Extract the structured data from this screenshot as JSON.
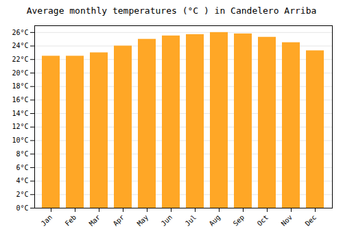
{
  "chart_data": {
    "type": "bar",
    "title": "Average monthly temperatures (°C ) in Candelero Arriba",
    "categories": [
      "Jan",
      "Feb",
      "Mar",
      "Apr",
      "May",
      "Jun",
      "Jul",
      "Aug",
      "Sep",
      "Oct",
      "Nov",
      "Dec"
    ],
    "values": [
      22.5,
      22.5,
      23.0,
      24.0,
      25.0,
      25.5,
      25.7,
      26.0,
      25.8,
      25.3,
      24.5,
      23.3
    ],
    "color": "#FFA726",
    "ylim": [
      0,
      27
    ],
    "yticks": [
      {
        "value": 0,
        "label": "0°C"
      },
      {
        "value": 2,
        "label": "2°C"
      },
      {
        "value": 4,
        "label": "4°C"
      },
      {
        "value": 6,
        "label": "6°C"
      },
      {
        "value": 8,
        "label": "8°C"
      },
      {
        "value": 10,
        "label": "10°C"
      },
      {
        "value": 12,
        "label": "12°C"
      },
      {
        "value": 14,
        "label": "14°C"
      },
      {
        "value": 16,
        "label": "16°C"
      },
      {
        "value": 18,
        "label": "18°C"
      },
      {
        "value": 20,
        "label": "20°C"
      },
      {
        "value": 22,
        "label": "22°C"
      },
      {
        "value": 24,
        "label": "24°C"
      },
      {
        "value": 26,
        "label": "26°C"
      }
    ],
    "grid": true
  }
}
